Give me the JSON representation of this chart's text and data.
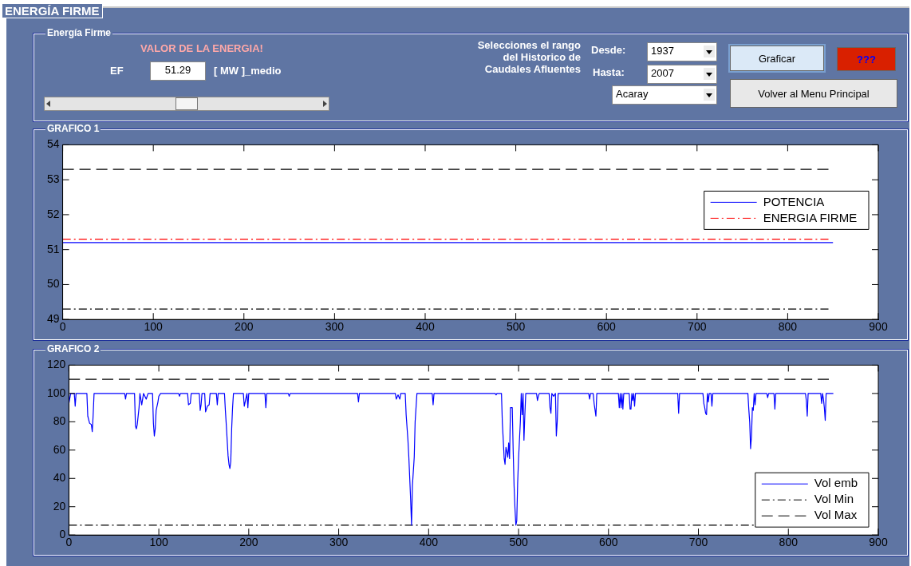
{
  "chart_data": [
    {
      "type": "other",
      "title": "ENERGÍA FIRME",
      "subtitle": "Energía Firme",
      "annotations": [
        "VALOR DE LA ENERGIA!",
        "EF",
        "51.29",
        "[ MW ]_medio",
        "Selecciones el rango\ndel Historico de\nCaudales Afluentes",
        "Desde:",
        "1937",
        "Hasta:",
        "2007",
        "Acaray",
        "Graficar",
        "???",
        "Volver al Menu Principal"
      ]
    },
    {
      "type": "line",
      "title": "GRAFICO 1",
      "xlim": [
        0,
        900
      ],
      "xticks": [
        0,
        100,
        200,
        300,
        400,
        500,
        600,
        700,
        800,
        900
      ],
      "ylim": [
        49,
        54
      ],
      "yticks": [
        49,
        50,
        51,
        52,
        53,
        54
      ],
      "legend": "top right",
      "series": [
        {
          "name": "POTENCIA",
          "color": "#0000ff",
          "line_style": "solid",
          "x": [
            0,
            850
          ],
          "values": [
            51.2,
            51.2
          ]
        },
        {
          "name": "ENERGIA FIRME",
          "color": "#ff0000",
          "line_style": "dashdot",
          "x": [
            0,
            845
          ],
          "values": [
            51.3,
            51.3
          ]
        },
        {
          "color": "#000000",
          "line_style": "dashed",
          "x": [
            0,
            845
          ],
          "values": [
            53.3,
            53.3
          ]
        },
        {
          "color": "#000000",
          "line_style": "dashdot",
          "x": [
            0,
            845
          ],
          "values": [
            49.3,
            49.3
          ]
        }
      ]
    },
    {
      "type": "line",
      "title": "GRAFICO 2",
      "xlim": [
        0,
        900
      ],
      "xticks": [
        0,
        100,
        200,
        300,
        400,
        500,
        600,
        700,
        800,
        900
      ],
      "ylim": [
        0,
        120
      ],
      "yticks": [
        0,
        20,
        40,
        60,
        80,
        100,
        120
      ],
      "legend": "bottom right",
      "series": [
        {
          "name": "Vol emb",
          "color": "#0000ff",
          "line_style": "solid",
          "x": [
            0,
            2,
            6,
            7,
            8,
            20,
            21,
            23,
            25,
            26,
            27,
            28,
            62,
            63,
            64,
            73,
            74,
            75,
            76,
            78,
            79,
            81,
            83,
            86,
            88,
            93,
            94,
            95,
            96,
            97,
            99,
            100,
            102,
            122,
            123,
            124,
            132,
            133,
            135,
            136,
            145,
            146,
            147,
            148,
            151,
            152,
            154,
            156,
            157,
            164,
            165,
            166,
            173,
            174,
            175,
            177,
            178,
            179,
            180,
            181,
            182,
            183,
            194,
            195,
            196,
            198,
            199,
            200,
            218,
            219,
            220,
            244,
            245,
            246,
            321,
            322,
            323,
            363,
            364,
            366,
            368,
            369,
            374,
            375,
            377,
            378,
            379,
            380,
            381,
            382,
            384,
            385,
            387,
            404,
            405,
            406,
            474,
            475,
            476,
            481,
            482,
            483,
            484,
            485,
            486,
            487,
            488,
            489,
            490,
            491,
            493,
            494,
            495,
            496,
            497,
            498,
            499,
            500,
            502,
            503,
            504,
            505,
            506,
            507,
            508,
            520,
            521,
            522,
            523,
            534,
            535,
            536,
            537,
            539,
            541,
            542,
            543,
            544,
            578,
            579,
            580,
            583,
            584,
            586,
            587,
            611,
            612,
            613,
            614,
            615,
            616,
            617,
            623,
            624,
            625,
            626,
            627,
            628,
            629,
            630,
            677,
            678,
            679,
            705,
            706,
            707,
            708,
            709,
            710,
            711,
            712,
            714,
            715,
            716,
            755,
            756,
            757,
            758,
            759,
            760,
            761,
            762,
            763,
            764,
            776,
            777,
            778,
            784,
            785,
            786,
            819,
            820,
            821,
            822,
            836,
            837,
            838,
            839,
            840,
            841,
            842,
            850
          ],
          "values": [
            93,
            100,
            100,
            91,
            100,
            100,
            84,
            79,
            78,
            73,
            85,
            100,
            100,
            96,
            100,
            100,
            77,
            75,
            78,
            90,
            100,
            92,
            100,
            96,
            100,
            100,
            79,
            70,
            75,
            88,
            94,
            98,
            100,
            100,
            98,
            100,
            100,
            92,
            93,
            100,
            100,
            88,
            92,
            100,
            100,
            87,
            91,
            92,
            100,
            100,
            92,
            100,
            100,
            88,
            78,
            56,
            50,
            47,
            52,
            75,
            90,
            100,
            100,
            91,
            94,
            100,
            90,
            100,
            100,
            90,
            100,
            100,
            98,
            100,
            100,
            94,
            100,
            100,
            96,
            99,
            96,
            100,
            100,
            85,
            67,
            55,
            40,
            25,
            7,
            35,
            55,
            80,
            100,
            100,
            92,
            100,
            100,
            99,
            100,
            100,
            79,
            67,
            54,
            50,
            62,
            59,
            55,
            65,
            54,
            90,
            90,
            60,
            35,
            19,
            7,
            10,
            37,
            54,
            80,
            100,
            85,
            100,
            67,
            85,
            100,
            100,
            95,
            98,
            100,
            100,
            90,
            86,
            100,
            98,
            100,
            70,
            80,
            100,
            100,
            96,
            100,
            100,
            93,
            84,
            100,
            100,
            90,
            100,
            90,
            100,
            89,
            100,
            100,
            89,
            89,
            100,
            95,
            100,
            91,
            100,
            100,
            86,
            100,
            100,
            93,
            90,
            86,
            85,
            100,
            94,
            100,
            100,
            91,
            100,
            100,
            89,
            80,
            61,
            70,
            90,
            88,
            100,
            92,
            100,
            100,
            97,
            100,
            100,
            89,
            100,
            100,
            95,
            84,
            100,
            100,
            93,
            100,
            96,
            90,
            81,
            100,
            100
          ]
        },
        {
          "name": "Vol Min",
          "color": "#000000",
          "line_style": "dashdot",
          "x": [
            0,
            845
          ],
          "values": [
            7,
            7
          ]
        },
        {
          "name": "Vol Max",
          "color": "#000000",
          "line_style": "dashed",
          "x": [
            0,
            845
          ],
          "values": [
            110,
            110
          ]
        }
      ]
    }
  ]
}
